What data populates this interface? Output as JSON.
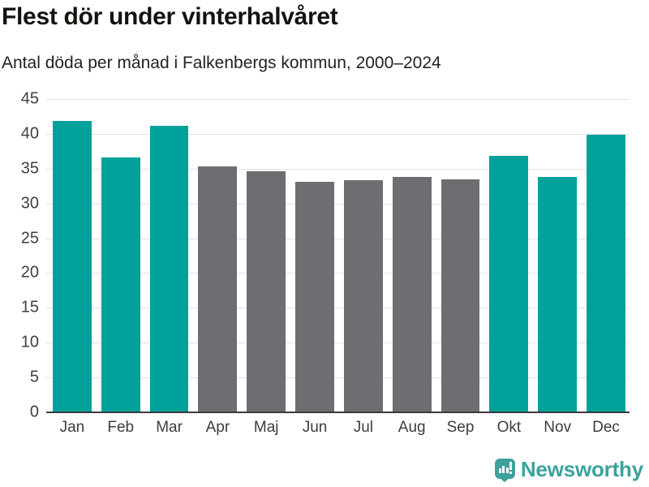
{
  "chart_data": {
    "type": "bar",
    "title": "Flest dör under vinterhalvåret",
    "subtitle": "Antal döda per månad i Falkenbergs kommun, 2000–2024",
    "categories": [
      "Jan",
      "Feb",
      "Mar",
      "Apr",
      "Maj",
      "Jun",
      "Jul",
      "Aug",
      "Sep",
      "Okt",
      "Nov",
      "Dec"
    ],
    "values": [
      41.8,
      36.6,
      41.2,
      35.3,
      34.6,
      33.1,
      33.3,
      33.8,
      33.5,
      36.8,
      33.8,
      39.9
    ],
    "highlighted": [
      true,
      true,
      true,
      false,
      false,
      false,
      false,
      false,
      false,
      true,
      true,
      true
    ],
    "xlabel": "",
    "ylabel": "",
    "ylim": [
      0,
      45
    ],
    "yticks": [
      0,
      5,
      10,
      15,
      20,
      25,
      30,
      35,
      40,
      45
    ],
    "grid": true,
    "legend": false,
    "colors": {
      "bar_highlight": "#00a19a",
      "bar_default": "#6e6d72",
      "gridline": "#e3e3e3",
      "axis_line": "#3b3b3b",
      "tick_text": "#3f3f3f"
    }
  },
  "footer": {
    "brand": "Newsworthy",
    "brand_color": "#3ba29c",
    "logo_icon": "bar-chart-speech-bubble-icon",
    "logo_color": "#3fa19c"
  }
}
